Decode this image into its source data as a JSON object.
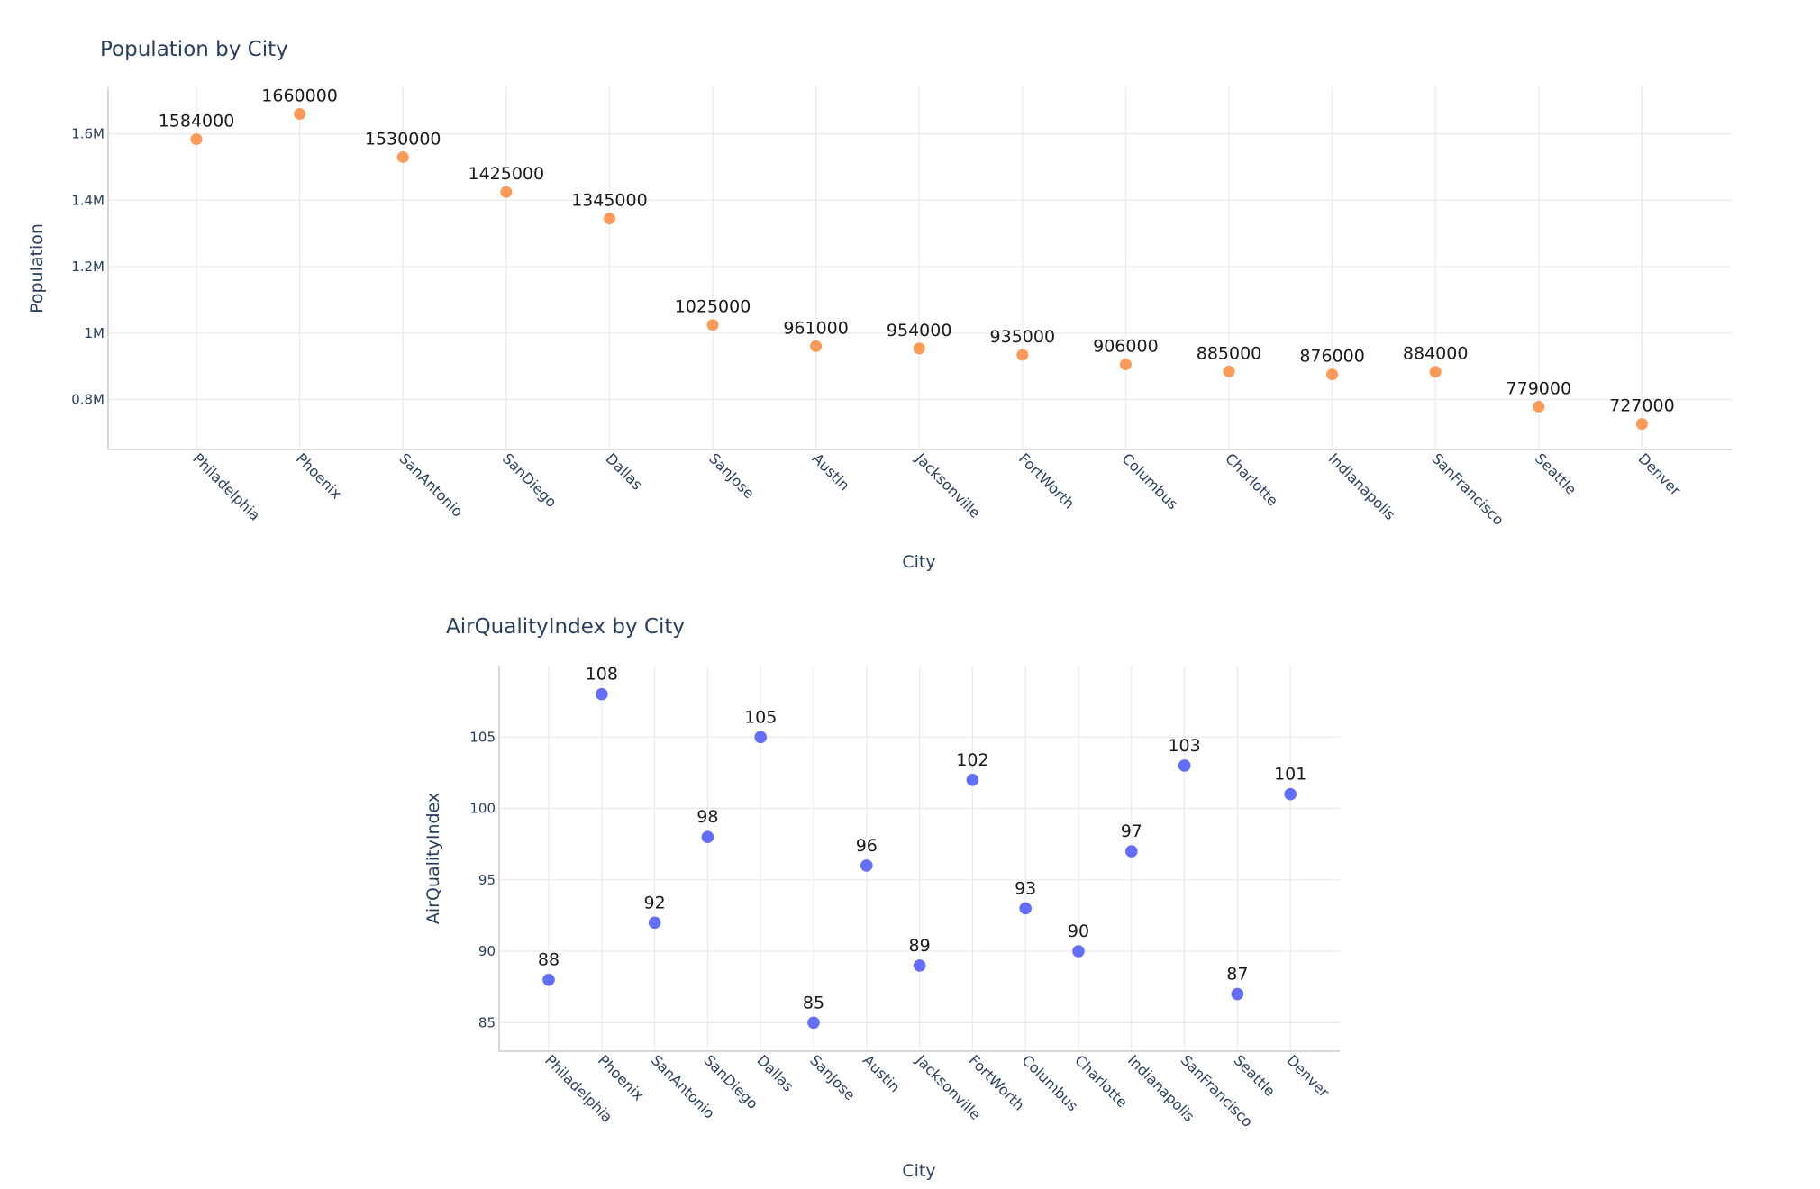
{
  "chart_data": [
    {
      "type": "scatter",
      "title": "Population by City",
      "xlabel": "City",
      "ylabel": "Population",
      "categories": [
        "Philadelphia",
        "Phoenix",
        "SanAntonio",
        "SanDiego",
        "Dallas",
        "SanJose",
        "Austin",
        "Jacksonville",
        "FortWorth",
        "Columbus",
        "Charlotte",
        "Indianapolis",
        "SanFrancisco",
        "Seattle",
        "Denver"
      ],
      "values": [
        1584000,
        1660000,
        1530000,
        1425000,
        1345000,
        1025000,
        961000,
        954000,
        935000,
        906000,
        885000,
        876000,
        884000,
        779000,
        727000
      ],
      "data_labels": [
        "1584000",
        "1660000",
        "1530000",
        "1425000",
        "1345000",
        "1025000",
        "961000",
        "954000",
        "935000",
        "906000",
        "885000",
        "876000",
        "884000",
        "779000",
        "727000"
      ],
      "ylim": [
        650000,
        1740000
      ],
      "yticks": [
        800000,
        1000000,
        1200000,
        1400000,
        1600000
      ],
      "ytick_labels": [
        "0.8M",
        "1M",
        "1.2M",
        "1.4M",
        "1.6M"
      ],
      "color": "#fd9a57"
    },
    {
      "type": "scatter",
      "title": "AirQualityIndex by City",
      "xlabel": "City",
      "ylabel": "AirQualityIndex",
      "categories": [
        "Philadelphia",
        "Phoenix",
        "SanAntonio",
        "SanDiego",
        "Dallas",
        "SanJose",
        "Austin",
        "Jacksonville",
        "FortWorth",
        "Columbus",
        "Charlotte",
        "Indianapolis",
        "SanFrancisco",
        "Seattle",
        "Denver"
      ],
      "values": [
        88,
        108,
        92,
        98,
        105,
        85,
        96,
        89,
        102,
        93,
        90,
        97,
        103,
        87,
        101
      ],
      "data_labels": [
        "88",
        "108",
        "92",
        "98",
        "105",
        "85",
        "96",
        "89",
        "102",
        "93",
        "90",
        "97",
        "103",
        "87",
        "101"
      ],
      "ylim": [
        83,
        110
      ],
      "yticks": [
        85,
        90,
        95,
        100,
        105
      ],
      "ytick_labels": [
        "85",
        "90",
        "95",
        "100",
        "105"
      ],
      "color": "#636efa"
    }
  ]
}
